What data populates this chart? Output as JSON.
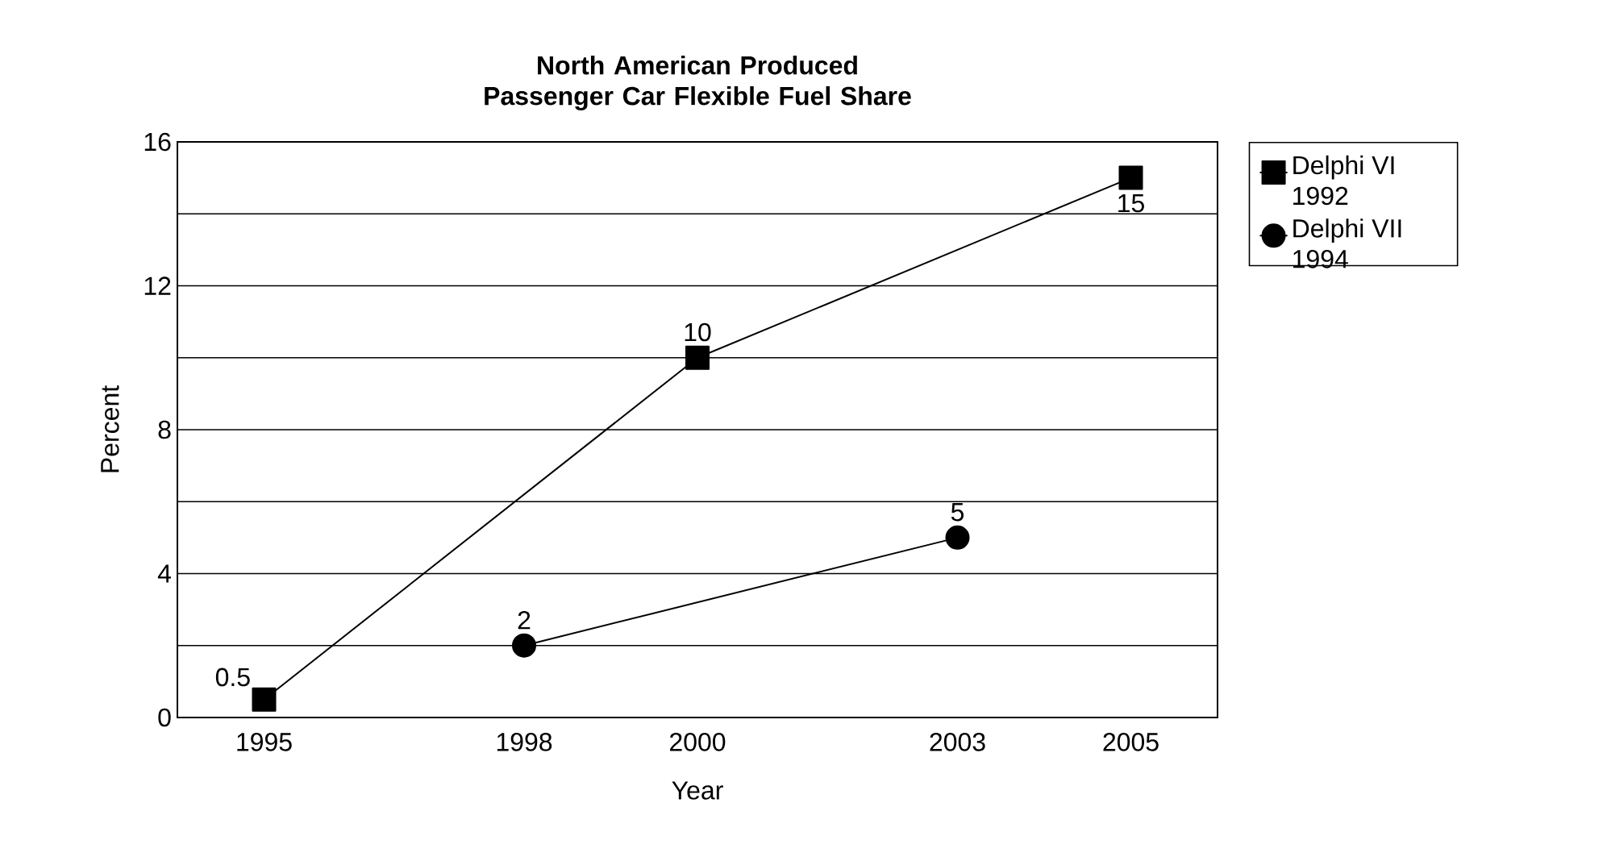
{
  "chart_data": {
    "type": "line",
    "title": "North American Produced Passenger Car Flexible Fuel Share",
    "xlabel": "Year",
    "ylabel": "Percent",
    "series": [
      {
        "name": "Delphi VI 1992",
        "color": "#000000",
        "marker": "square",
        "x": [
          1995,
          2000,
          2005
        ],
        "values": [
          0.5,
          10,
          15
        ]
      },
      {
        "name": "Delphi VII 1994",
        "color": "#000000",
        "marker": "circle",
        "x": [
          1998,
          2003
        ],
        "values": [
          2,
          5
        ]
      }
    ],
    "xlim": [
      1994,
      2006
    ],
    "xticks": [
      1995,
      1998,
      2000,
      2003,
      2005
    ],
    "ylim": [
      0,
      16
    ],
    "yticks": [
      0,
      {
        "value": 2,
        "label": null
      },
      4,
      {
        "value": 6,
        "label": null
      },
      8,
      {
        "value": 10,
        "label": null
      },
      12,
      {
        "value": 14,
        "label": null
      },
      16
    ],
    "grid": "y",
    "legend": "top right",
    "data_labels": true,
    "line_style": "solid"
  }
}
